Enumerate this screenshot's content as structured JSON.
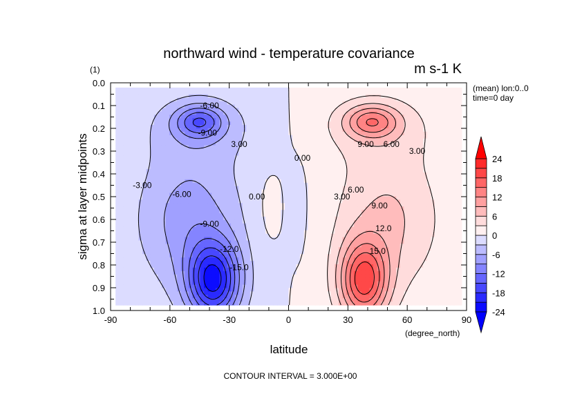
{
  "chart_data": {
    "type": "contour",
    "title": "northward wind - temperature covariance",
    "units": "m s-1 K",
    "y_units": "(1)",
    "x_units": "(degree_north)",
    "subtitle_lines": [
      "(mean) lon:0..0",
      "time=0 day"
    ],
    "xlabel": "latitude",
    "ylabel": "sigma at layer midpoints",
    "xlim": [
      -90,
      90
    ],
    "ylim": [
      0.0,
      1.0
    ],
    "y_inverted": true,
    "x_ticks": [
      "-90",
      "-60",
      "-30",
      "0",
      "30",
      "60",
      "90"
    ],
    "x_tick_values": [
      -90,
      -60,
      -30,
      0,
      30,
      60,
      90
    ],
    "y_ticks": [
      "0.0",
      "0.1",
      "0.2",
      "0.3",
      "0.4",
      "0.5",
      "0.6",
      "0.7",
      "0.8",
      "0.9",
      "1.0"
    ],
    "y_tick_values": [
      0.0,
      0.1,
      0.2,
      0.3,
      0.4,
      0.5,
      0.6,
      0.7,
      0.8,
      0.9,
      1.0
    ],
    "footer": "CONTOUR INTERVAL = 3.000E+00",
    "contour_interval": 3,
    "levels_min": -24,
    "levels_max": 24,
    "colorbar_labels": [
      "24",
      "18",
      "12",
      "6",
      "0",
      "-6",
      "-12",
      "-18",
      "-24"
    ],
    "colorbar_label_values": [
      24,
      18,
      12,
      6,
      0,
      -6,
      -12,
      -18,
      -24
    ],
    "band_colors": [
      "#0c0cff",
      "#2a2aff",
      "#4848ff",
      "#6666ff",
      "#8484ff",
      "#a0a0ff",
      "#bcbcff",
      "#dcdcff",
      "#fff0f0",
      "#ffdcdc",
      "#ffbcbc",
      "#ffa0a0",
      "#ff8484",
      "#ff6666",
      "#ff4848",
      "#ff2a2a"
    ],
    "under_color": "#0000ff",
    "over_color": "#ff0000",
    "field_components": [
      {
        "amp": -11,
        "lat": -45,
        "sigma": 0.17,
        "lat_width": 12,
        "sigma_width": 0.07
      },
      {
        "amp": -20,
        "lat": -38,
        "sigma": 0.87,
        "lat_width": 13,
        "sigma_width": 0.17
      },
      {
        "amp": -7,
        "lat": -50,
        "sigma": 0.6,
        "lat_width": 25,
        "sigma_width": 0.3
      },
      {
        "amp": -3.5,
        "lat": -45,
        "sigma": 0.2,
        "lat_width": 28,
        "sigma_width": 0.15
      },
      {
        "amp": 11,
        "lat": 42,
        "sigma": 0.17,
        "lat_width": 13,
        "sigma_width": 0.07
      },
      {
        "amp": 18,
        "lat": 38,
        "sigma": 0.87,
        "lat_width": 12,
        "sigma_width": 0.17
      },
      {
        "amp": 6,
        "lat": 50,
        "sigma": 0.6,
        "lat_width": 25,
        "sigma_width": 0.3
      },
      {
        "amp": 3.5,
        "lat": 45,
        "sigma": 0.2,
        "lat_width": 28,
        "sigma_width": 0.15
      },
      {
        "amp": 1.6,
        "lat": -10,
        "sigma": 0.55,
        "lat_width": 8,
        "sigma_width": 0.2
      },
      {
        "amp": -1.6,
        "lat": 5,
        "sigma": 0.55,
        "lat_width": 6,
        "sigma_width": 0.25
      }
    ],
    "contour_labels": [
      {
        "text": "-6.00",
        "lat": -40,
        "sigma": 0.1
      },
      {
        "text": "-9.00",
        "lat": -41,
        "sigma": 0.22
      },
      {
        "text": "3.00",
        "lat": -25,
        "sigma": 0.27
      },
      {
        "text": "-3.00",
        "lat": -74,
        "sigma": 0.45
      },
      {
        "text": "-6.00",
        "lat": -54,
        "sigma": 0.49
      },
      {
        "text": "-9.00",
        "lat": -40,
        "sigma": 0.62
      },
      {
        "text": "-12.0",
        "lat": -30,
        "sigma": 0.73
      },
      {
        "text": "-15.0",
        "lat": -25,
        "sigma": 0.81
      },
      {
        "text": "0.00",
        "lat": -16,
        "sigma": 0.5
      },
      {
        "text": "0.00",
        "lat": 7,
        "sigma": 0.33
      },
      {
        "text": "3.00",
        "lat": 27,
        "sigma": 0.5
      },
      {
        "text": "6.00",
        "lat": 34,
        "sigma": 0.47
      },
      {
        "text": "9.00",
        "lat": 46,
        "sigma": 0.54
      },
      {
        "text": "12.0",
        "lat": 48,
        "sigma": 0.64
      },
      {
        "text": "15.0",
        "lat": 45,
        "sigma": 0.74
      },
      {
        "text": "9.00",
        "lat": 39,
        "sigma": 0.27
      },
      {
        "text": "6.00",
        "lat": 52,
        "sigma": 0.27
      },
      {
        "text": "3.00",
        "lat": 65,
        "sigma": 0.3
      }
    ]
  }
}
